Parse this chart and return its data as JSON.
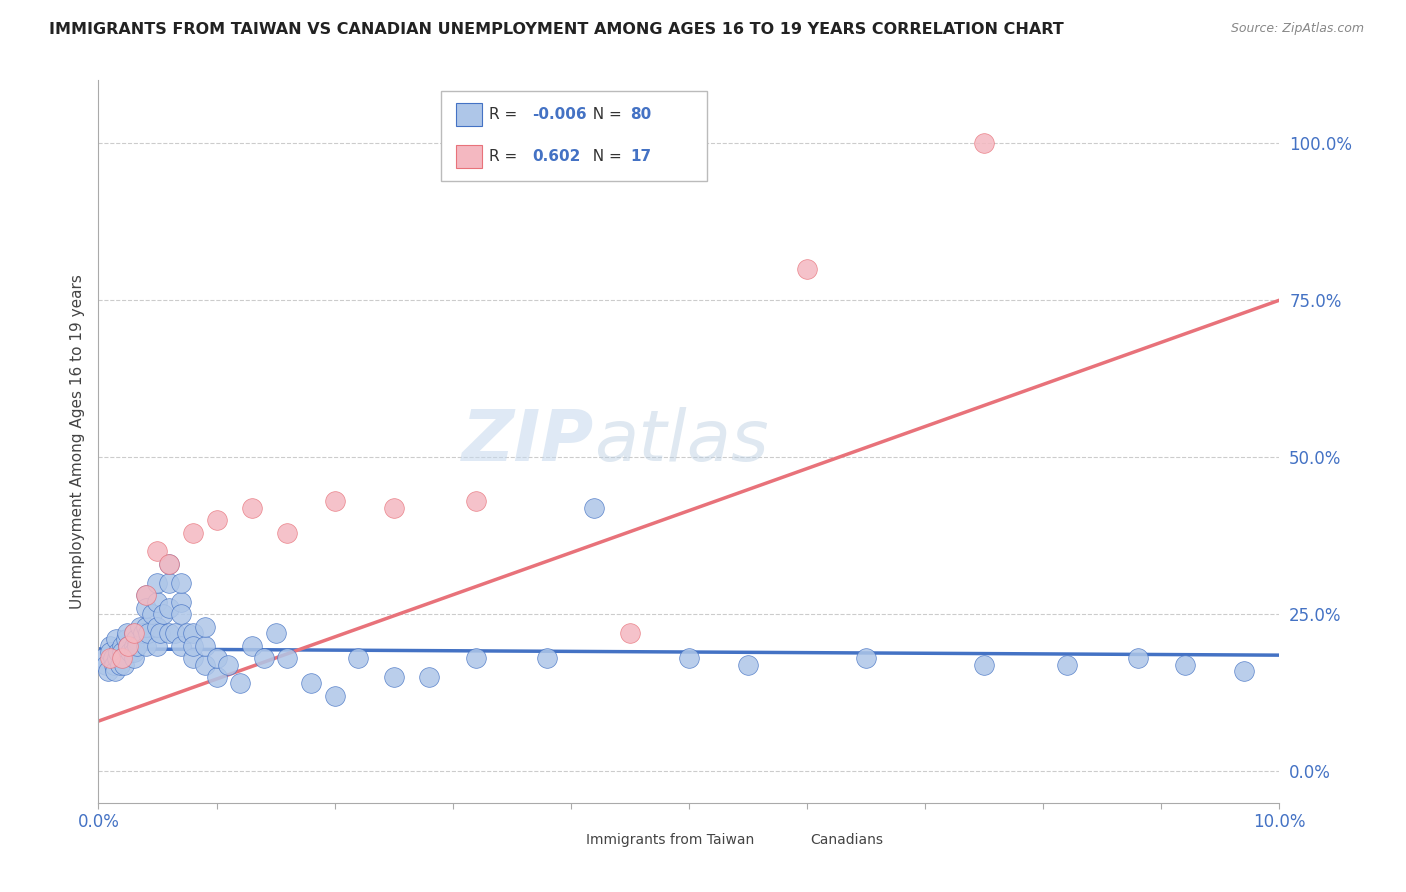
{
  "title": "IMMIGRANTS FROM TAIWAN VS CANADIAN UNEMPLOYMENT AMONG AGES 16 TO 19 YEARS CORRELATION CHART",
  "source": "Source: ZipAtlas.com",
  "ylabel": "Unemployment Among Ages 16 to 19 years",
  "xlim": [
    0.0,
    0.1
  ],
  "ylim": [
    -0.05,
    1.1
  ],
  "yticks": [
    0.0,
    0.25,
    0.5,
    0.75,
    1.0
  ],
  "ytick_labels": [
    "0.0%",
    "25.0%",
    "50.0%",
    "75.0%",
    "100.0%"
  ],
  "xticks": [
    0.0,
    0.01,
    0.02,
    0.03,
    0.04,
    0.05,
    0.06,
    0.07,
    0.08,
    0.09,
    0.1
  ],
  "xtick_labels": [
    "0.0%",
    "",
    "",
    "",
    "",
    "",
    "",
    "",
    "",
    "",
    "10.0%"
  ],
  "blue_R": -0.006,
  "blue_N": 80,
  "pink_R": 0.602,
  "pink_N": 17,
  "blue_color": "#aec6e8",
  "pink_color": "#f4b8c1",
  "blue_line_color": "#4472c4",
  "pink_line_color": "#e8727a",
  "legend_label_blue": "Immigrants from Taiwan",
  "legend_label_pink": "Canadians",
  "blue_scatter_x": [
    0.0004,
    0.0006,
    0.0008,
    0.001,
    0.001,
    0.0012,
    0.0013,
    0.0014,
    0.0015,
    0.0016,
    0.0017,
    0.0018,
    0.002,
    0.002,
    0.002,
    0.0022,
    0.0023,
    0.0024,
    0.0025,
    0.0027,
    0.003,
    0.003,
    0.003,
    0.003,
    0.0032,
    0.0033,
    0.0035,
    0.0038,
    0.004,
    0.004,
    0.004,
    0.004,
    0.0042,
    0.0045,
    0.005,
    0.005,
    0.005,
    0.005,
    0.0052,
    0.0055,
    0.006,
    0.006,
    0.006,
    0.006,
    0.0065,
    0.007,
    0.007,
    0.007,
    0.007,
    0.0075,
    0.008,
    0.008,
    0.008,
    0.009,
    0.009,
    0.009,
    0.01,
    0.01,
    0.011,
    0.012,
    0.013,
    0.014,
    0.015,
    0.016,
    0.018,
    0.02,
    0.022,
    0.025,
    0.028,
    0.032,
    0.038,
    0.042,
    0.05,
    0.055,
    0.065,
    0.075,
    0.082,
    0.088,
    0.092,
    0.097
  ],
  "blue_scatter_y": [
    0.18,
    0.17,
    0.16,
    0.2,
    0.19,
    0.18,
    0.17,
    0.16,
    0.21,
    0.18,
    0.19,
    0.17,
    0.2,
    0.19,
    0.18,
    0.17,
    0.21,
    0.22,
    0.2,
    0.19,
    0.22,
    0.2,
    0.19,
    0.18,
    0.21,
    0.2,
    0.23,
    0.22,
    0.2,
    0.23,
    0.28,
    0.26,
    0.22,
    0.25,
    0.2,
    0.23,
    0.27,
    0.3,
    0.22,
    0.25,
    0.22,
    0.26,
    0.3,
    0.33,
    0.22,
    0.27,
    0.3,
    0.2,
    0.25,
    0.22,
    0.18,
    0.22,
    0.2,
    0.17,
    0.2,
    0.23,
    0.15,
    0.18,
    0.17,
    0.14,
    0.2,
    0.18,
    0.22,
    0.18,
    0.14,
    0.12,
    0.18,
    0.15,
    0.15,
    0.18,
    0.18,
    0.42,
    0.18,
    0.17,
    0.18,
    0.17,
    0.17,
    0.18,
    0.17,
    0.16
  ],
  "pink_scatter_x": [
    0.001,
    0.002,
    0.0025,
    0.003,
    0.004,
    0.005,
    0.006,
    0.008,
    0.01,
    0.013,
    0.016,
    0.02,
    0.025,
    0.032,
    0.045,
    0.06,
    0.075
  ],
  "pink_scatter_y": [
    0.18,
    0.18,
    0.2,
    0.22,
    0.28,
    0.35,
    0.33,
    0.38,
    0.4,
    0.42,
    0.38,
    0.43,
    0.42,
    0.43,
    0.22,
    0.8,
    1.0
  ],
  "blue_trend_x": [
    0.0,
    0.1
  ],
  "blue_trend_y": [
    0.195,
    0.185
  ],
  "pink_trend_x": [
    0.0,
    0.1
  ],
  "pink_trend_y": [
    0.08,
    0.75
  ]
}
